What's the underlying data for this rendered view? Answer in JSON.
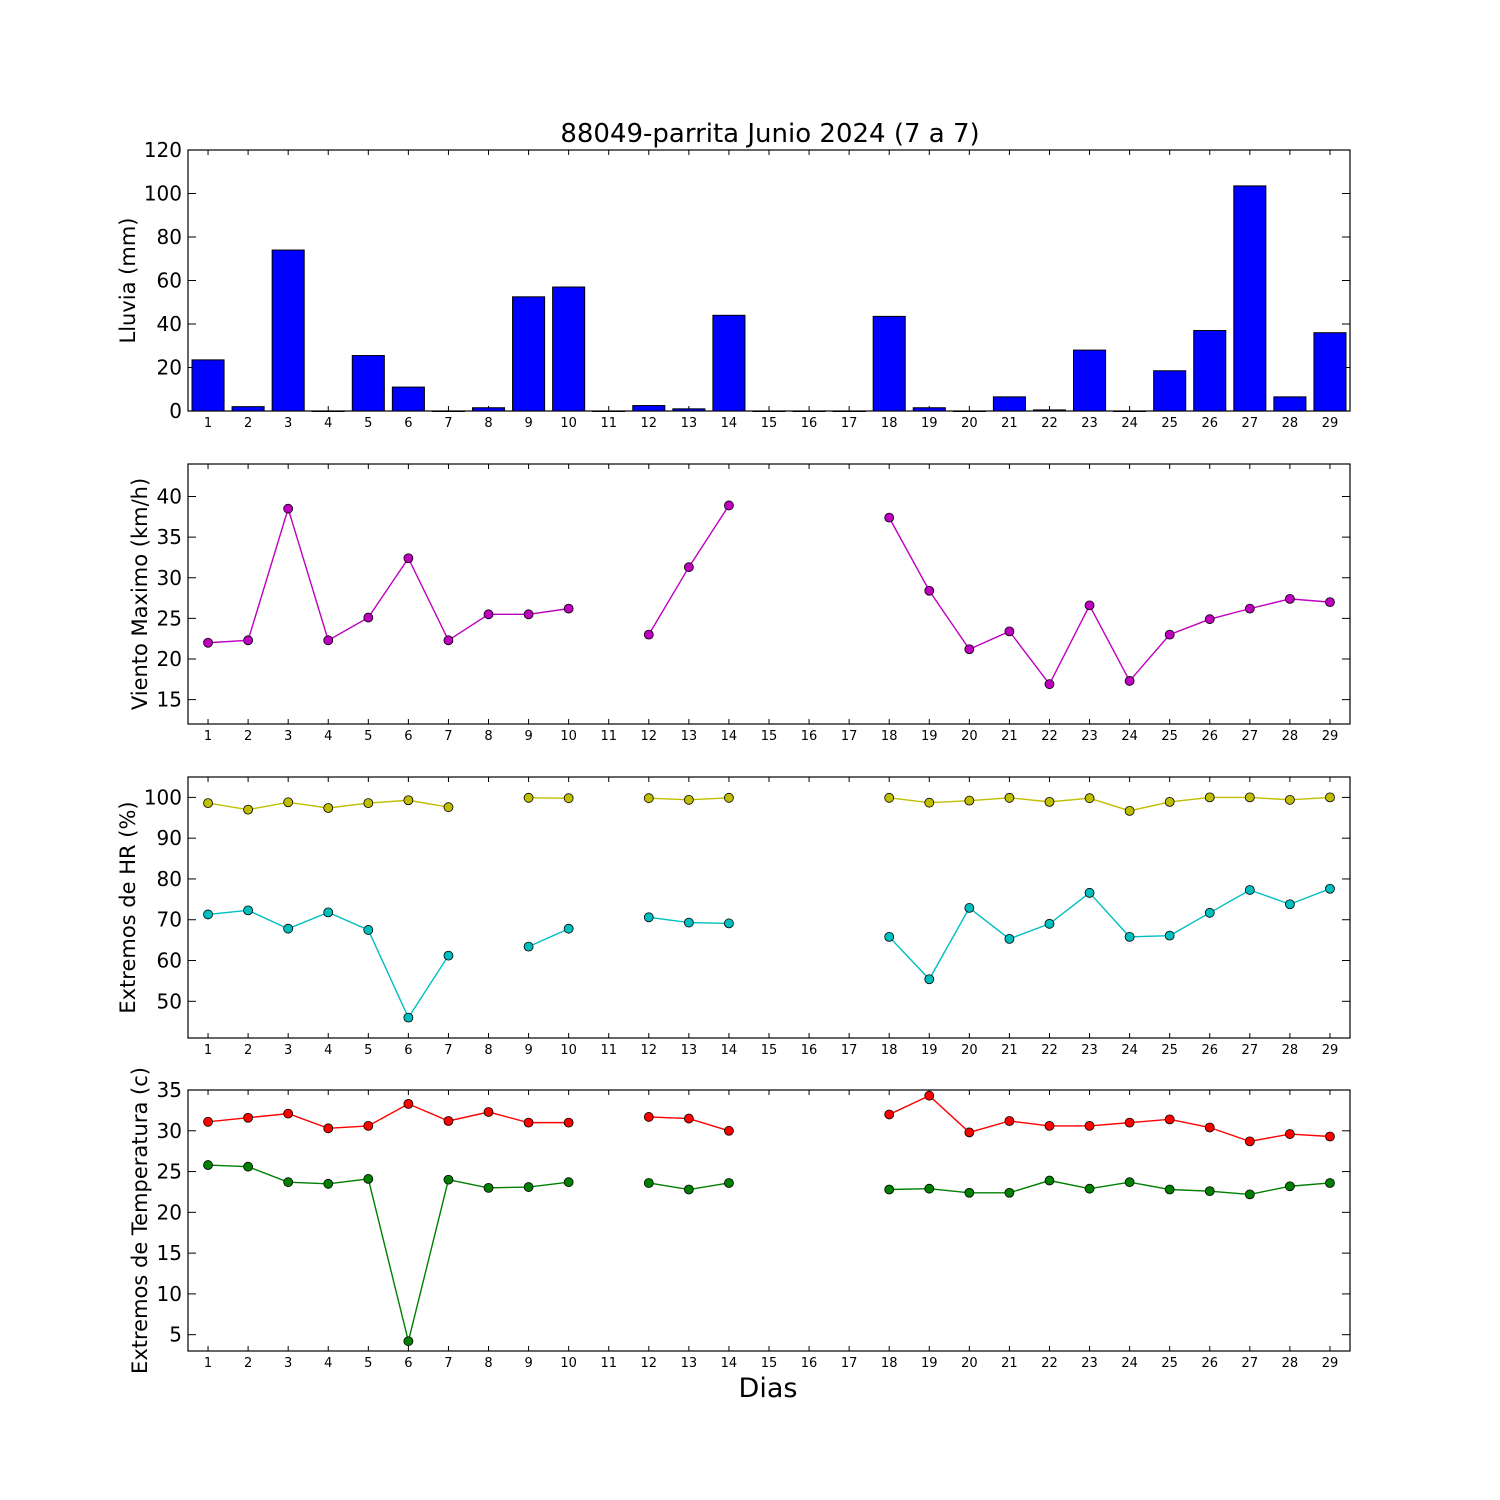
{
  "figure": {
    "title": "88049-parrita Junio 2024  (7 a 7)",
    "xlabel": "Dias"
  },
  "colors": {
    "rain": "#0000ff",
    "wind": "#bf00bf",
    "hr_max": "#bfbf00",
    "hr_min": "#00bfbf",
    "t_max": "#ff0000",
    "t_min": "#008000"
  },
  "chart_data": [
    {
      "id": "rain",
      "type": "bar",
      "ylabel": "Lluvia (mm)",
      "ylim": [
        0,
        120
      ],
      "yticks": [
        0,
        20,
        40,
        60,
        80,
        100,
        120
      ],
      "categories": [
        1,
        2,
        3,
        4,
        5,
        6,
        7,
        8,
        9,
        10,
        11,
        12,
        13,
        14,
        15,
        16,
        17,
        18,
        19,
        20,
        21,
        22,
        23,
        24,
        25,
        26,
        27,
        28,
        29
      ],
      "values": [
        23.5,
        2,
        74,
        0,
        25.5,
        11,
        0,
        1.5,
        52.5,
        57,
        0,
        2.5,
        1,
        44,
        0,
        0,
        0,
        43.5,
        1.5,
        0,
        6.5,
        0.5,
        28,
        0,
        18.5,
        37,
        103.5,
        6.5,
        36
      ]
    },
    {
      "id": "wind",
      "type": "line",
      "ylabel": "Viento Maximo (km/h)",
      "ylim": [
        12,
        44
      ],
      "yticks": [
        15,
        20,
        25,
        30,
        35,
        40
      ],
      "x": [
        1,
        2,
        3,
        4,
        5,
        6,
        7,
        8,
        9,
        10,
        11,
        12,
        13,
        14,
        15,
        16,
        17,
        18,
        19,
        20,
        21,
        22,
        23,
        24,
        25,
        26,
        27,
        28,
        29
      ],
      "series": [
        {
          "color_key": "wind",
          "values": [
            22,
            22.3,
            38.5,
            22.3,
            25.1,
            32.4,
            22.3,
            25.5,
            25.5,
            26.2,
            null,
            23,
            31.3,
            38.9,
            null,
            null,
            null,
            37.4,
            28.4,
            21.2,
            23.4,
            16.9,
            26.6,
            17.3,
            23,
            24.9,
            26.2,
            27.4,
            27
          ]
        }
      ]
    },
    {
      "id": "hr",
      "type": "line",
      "ylabel": "Extremos de HR (%)",
      "ylim": [
        41,
        105
      ],
      "yticks": [
        50,
        60,
        70,
        80,
        90,
        100
      ],
      "x": [
        1,
        2,
        3,
        4,
        5,
        6,
        7,
        8,
        9,
        10,
        11,
        12,
        13,
        14,
        15,
        16,
        17,
        18,
        19,
        20,
        21,
        22,
        23,
        24,
        25,
        26,
        27,
        28,
        29
      ],
      "series": [
        {
          "color_key": "hr_max",
          "values": [
            98.6,
            97,
            98.8,
            97.4,
            98.6,
            99.3,
            97.6,
            null,
            99.9,
            99.8,
            null,
            99.8,
            99.4,
            99.9,
            null,
            null,
            null,
            99.9,
            98.7,
            99.2,
            99.9,
            98.9,
            99.8,
            96.7,
            98.9,
            100,
            100,
            99.4,
            100
          ]
        },
        {
          "color_key": "hr_min",
          "values": [
            71.3,
            72.3,
            67.8,
            71.8,
            67.5,
            46,
            61.2,
            null,
            63.4,
            67.8,
            null,
            70.6,
            69.3,
            69.1,
            null,
            null,
            null,
            65.8,
            55.4,
            72.9,
            65.3,
            69,
            76.6,
            65.8,
            66.1,
            71.7,
            77.3,
            73.8,
            77.6
          ]
        }
      ]
    },
    {
      "id": "temp",
      "type": "line",
      "ylabel": "Extremos de Temperatura (c)",
      "ylim": [
        3,
        35
      ],
      "yticks": [
        5,
        10,
        15,
        20,
        25,
        30,
        35
      ],
      "x": [
        1,
        2,
        3,
        4,
        5,
        6,
        7,
        8,
        9,
        10,
        11,
        12,
        13,
        14,
        15,
        16,
        17,
        18,
        19,
        20,
        21,
        22,
        23,
        24,
        25,
        26,
        27,
        28,
        29
      ],
      "series": [
        {
          "color_key": "t_max",
          "values": [
            31.1,
            31.6,
            32.1,
            30.3,
            30.6,
            33.3,
            31.2,
            32.3,
            31,
            31,
            null,
            31.7,
            31.5,
            30,
            null,
            null,
            null,
            32,
            34.3,
            29.8,
            31.2,
            30.6,
            30.6,
            31,
            31.4,
            30.4,
            28.7,
            29.6,
            29.3
          ]
        },
        {
          "color_key": "t_min",
          "values": [
            25.8,
            25.6,
            23.7,
            23.5,
            24.1,
            4.2,
            24,
            23,
            23.1,
            23.7,
            null,
            23.6,
            22.8,
            23.6,
            null,
            null,
            null,
            22.8,
            22.9,
            22.4,
            22.4,
            23.9,
            22.9,
            23.7,
            22.8,
            22.6,
            22.2,
            23.2,
            23.6
          ]
        }
      ]
    }
  ]
}
